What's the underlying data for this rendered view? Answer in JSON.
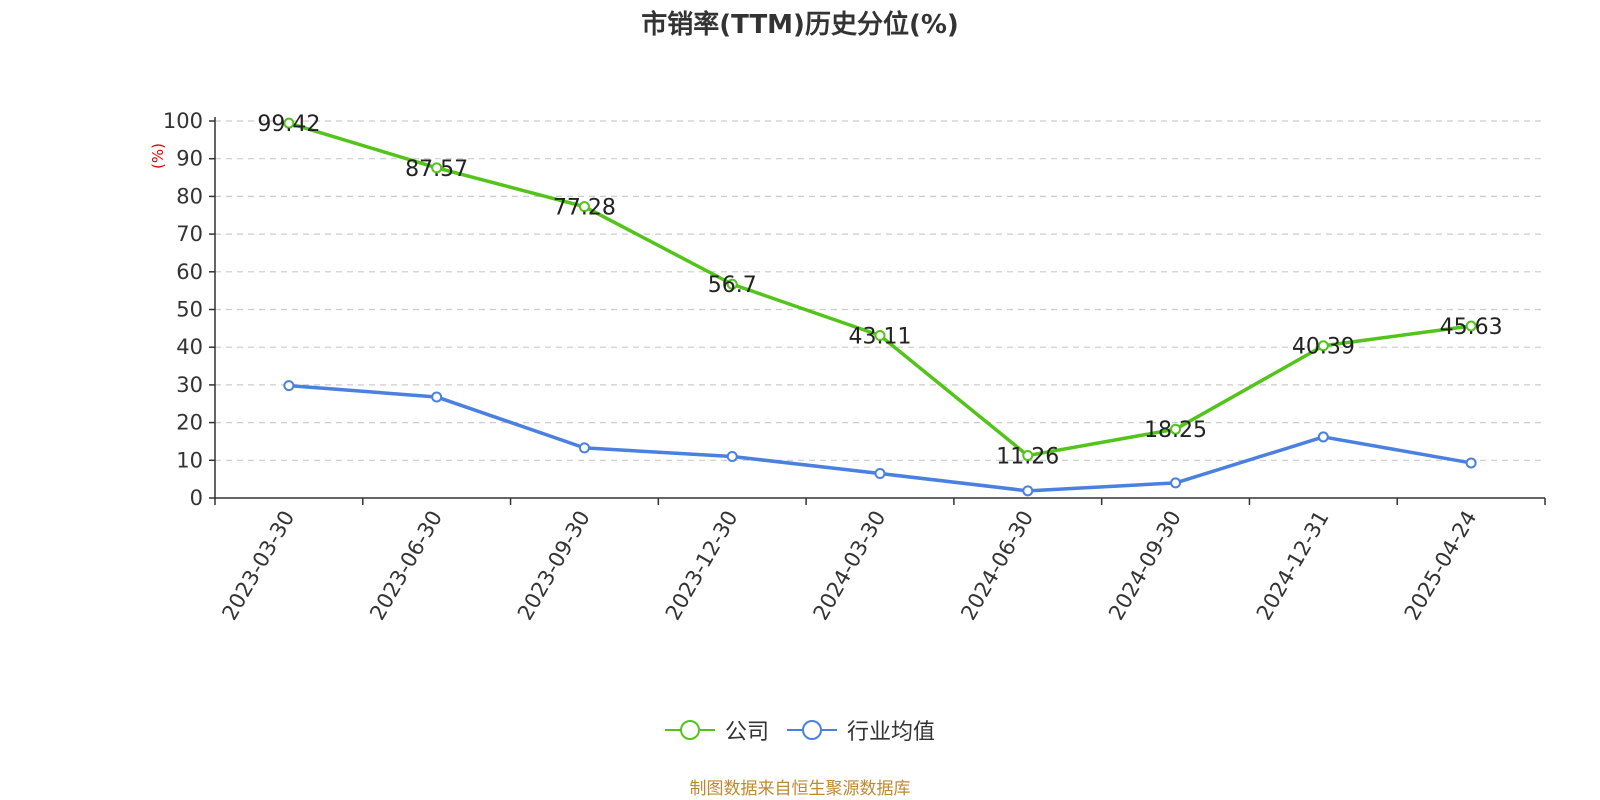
{
  "title": "市销率(TTM)历史分位(%)",
  "source_note": "制图数据来自恒生聚源数据库",
  "colors": {
    "company": "#52c41a",
    "industry": "#4a80e0",
    "ylabel": "#e00000",
    "grid": "#cccccc",
    "source": "#c08a2b"
  },
  "chart_data": {
    "type": "line",
    "title": "市销率(TTM)历史分位(%)",
    "ylabel": "(%)",
    "xlabel": "",
    "ylim": [
      0,
      100
    ],
    "yticks": [
      0,
      10,
      20,
      30,
      40,
      50,
      60,
      70,
      80,
      90,
      100
    ],
    "grid": true,
    "legend_position": "bottom-center",
    "categories": [
      "2023-03-30",
      "2023-06-30",
      "2023-09-30",
      "2023-12-30",
      "2024-03-30",
      "2024-06-30",
      "2024-09-30",
      "2024-12-31",
      "2025-04-24"
    ],
    "series": [
      {
        "name": "公司",
        "color": "#52c41a",
        "values": [
          99.42,
          87.57,
          77.28,
          56.7,
          43.11,
          11.26,
          18.25,
          40.39,
          45.63
        ],
        "labels": [
          "99.42",
          "87.57",
          "77.28",
          "56.7",
          "43.11",
          "11.26",
          "18.25",
          "40.39",
          "45.63"
        ]
      },
      {
        "name": "行业均值",
        "color": "#4a80e0",
        "values": [
          29.8,
          26.8,
          13.3,
          11.0,
          6.5,
          1.9,
          4.0,
          16.2,
          9.3
        ]
      }
    ]
  }
}
